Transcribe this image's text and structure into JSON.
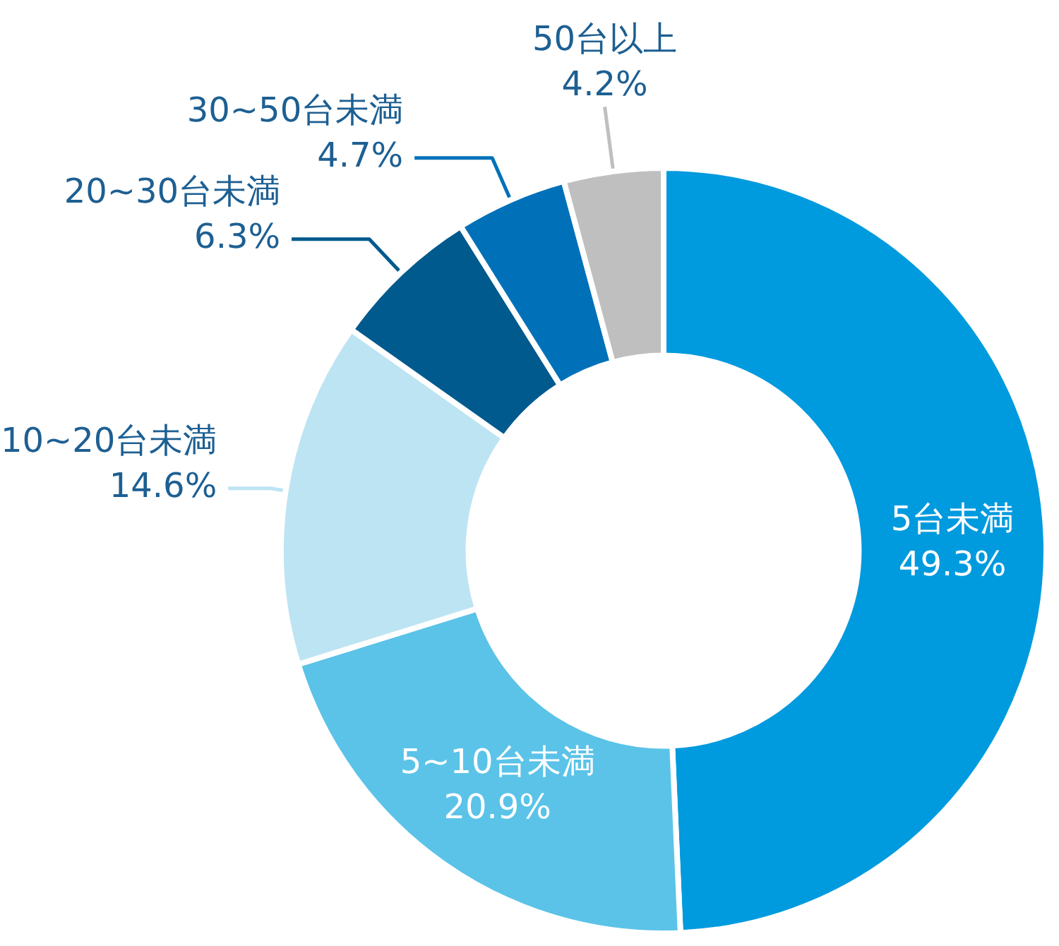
{
  "chart_data": {
    "type": "donut",
    "categories": [
      "5台未満",
      "5~10台未満",
      "10~20台未満",
      "20~30台未満",
      "30~50台未満",
      "50台以上"
    ],
    "values": [
      49.3,
      20.9,
      14.6,
      6.3,
      4.7,
      4.2
    ],
    "value_labels": [
      "49.3%",
      "20.9%",
      "14.6%",
      "6.3%",
      "4.7%",
      "4.2%"
    ],
    "colors": [
      "#009ade",
      "#5bc3e8",
      "#bde4f3",
      "#005a8d",
      "#0071b9",
      "#bfbfbf"
    ],
    "legend": false
  }
}
